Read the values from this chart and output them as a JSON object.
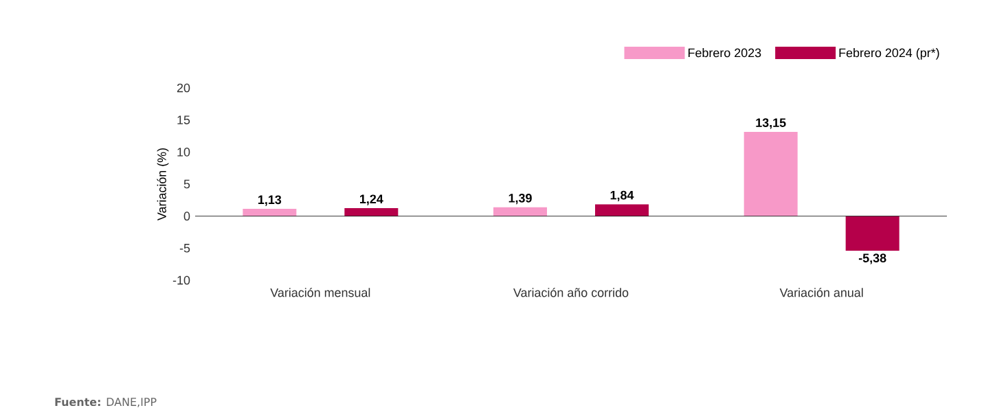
{
  "chart_data": {
    "type": "bar",
    "ylabel": "Variación (%)",
    "categories": [
      "Variación mensual",
      "Variación año corrido",
      "Variación anual"
    ],
    "series": [
      {
        "name": "Febrero 2023",
        "color": "#f799c8",
        "values": [
          1.13,
          1.39,
          13.15
        ],
        "value_labels": [
          "1,13",
          "1,39",
          "13,15"
        ]
      },
      {
        "name": "Febrero 2024 (pr*)",
        "color": "#b5004a",
        "values": [
          1.24,
          1.84,
          -5.38
        ],
        "value_labels": [
          "1,24",
          "1,84",
          "-5,38"
        ]
      }
    ],
    "ylim": [
      -10,
      20
    ],
    "yticks": [
      -10,
      -5,
      0,
      5,
      10,
      15,
      20
    ],
    "legend": "top right",
    "annotations": [
      "**Fuente:** DANE,IPP"
    ]
  }
}
